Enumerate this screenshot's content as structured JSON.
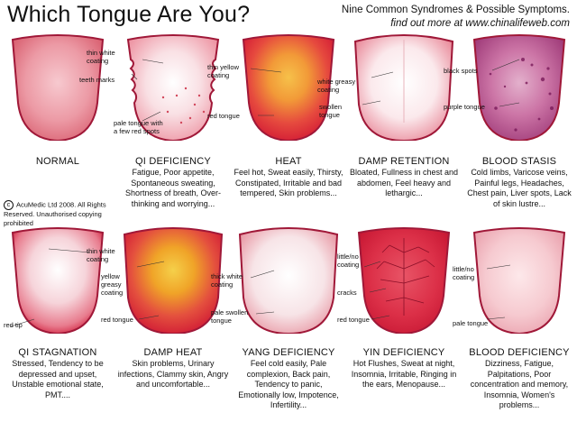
{
  "header": {
    "title": "Which Tongue Are You?",
    "subtitle_line1": "Nine Common Syndromes & Possible Symptoms.",
    "subtitle_line2": "find out more at www.chinalifeweb.com"
  },
  "copyright": {
    "symbol": "c",
    "text": "AcuMedic Ltd 2008. All Rights Reserved. Unauthorised copying prohibited"
  },
  "tongues": [
    {
      "name": "NORMAL",
      "description": "",
      "labels": []
    },
    {
      "name": "QI DEFICIENCY",
      "description": "Fatigue, Poor appetite, Spontaneous sweating, Shortness of breath, Over-thinking and worrying...",
      "labels": [
        "thin white coating",
        "teeth marks",
        "pale tongue with a few red spots"
      ]
    },
    {
      "name": "HEAT",
      "description": "Feel hot, Sweat easily, Thirsty, Constipated, Irritable and bad tempered, Skin problems...",
      "labels": [
        "thin yellow coating",
        "red tongue"
      ]
    },
    {
      "name": "DAMP RETENTION",
      "description": "Bloated, Fullness in chest and abdomen, Feel heavy and lethargic...",
      "labels": [
        "white greasy coating",
        "swollen tongue"
      ]
    },
    {
      "name": "BLOOD STASIS",
      "description": "Cold limbs, Varicose veins, Painful legs, Headaches, Chest pain, Liver spots, Lack of skin lustre...",
      "labels": [
        "black spots",
        "purple tongue"
      ]
    },
    {
      "name": "QI STAGNATION",
      "description": "Stressed, Tendency to be depressed and upset, Unstable emotional state, PMT....",
      "labels": [
        "thin white coating",
        "red tip"
      ]
    },
    {
      "name": "DAMP HEAT",
      "description": "Skin problems, Urinary infections, Clammy skin, Angry and uncomfortable...",
      "labels": [
        "yellow greasy coating",
        "red tongue"
      ]
    },
    {
      "name": "YANG DEFICIENCY",
      "description": "Feel cold easily, Pale complexion, Back pain, Tendency to panic, Emotionally low, Impotence, Infertility...",
      "labels": [
        "thick white coating",
        "pale swollen tongue"
      ]
    },
    {
      "name": "YIN DEFICIENCY",
      "description": "Hot Flushes, Sweat at night, Insomnia, Irritable, Ringing in the ears, Menopause...",
      "labels": [
        "little/no coating",
        "cracks",
        "red tongue"
      ]
    },
    {
      "name": "BLOOD DEFICIENCY",
      "description": "Dizziness, Fatigue, Palpitations, Poor concentration and memory, Insomnia, Women's problems...",
      "labels": [
        "little/no coating",
        "pale tongue"
      ]
    }
  ],
  "colors": {
    "normal_body": "#e8828e",
    "border": "#a01838",
    "red_body": "#d8283e",
    "purple_body": "#b04c86",
    "pale_body": "#f3c4cb",
    "yellow_coat": "#f0a020",
    "white_coat": "#ffffff",
    "black_spots": "#7a1a5a"
  }
}
